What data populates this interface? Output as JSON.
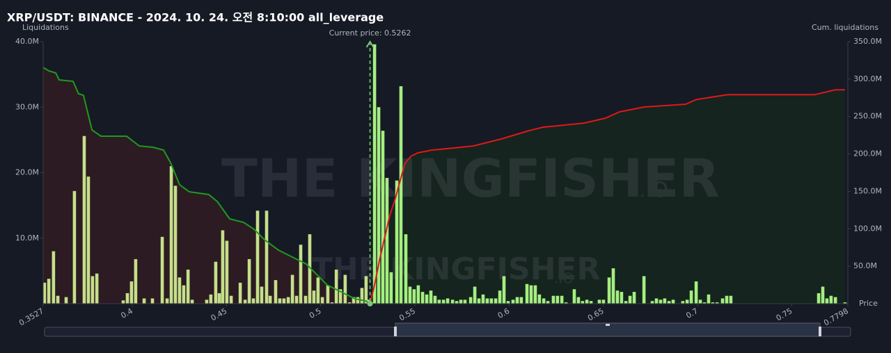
{
  "chart_data": {
    "type": "bar",
    "title": "XRP/USDT: BINANCE - 2024. 10. 24. 오전 8:10:00 all_leverage",
    "y_label": "Liquidations",
    "y2_label": "Cum. liquidations",
    "x_label": "Price",
    "watermark": "THE KINGFISHER",
    "watermark_suffix": ".IO",
    "annotations": [
      {
        "text": "Current price: 0.5262",
        "x": 0.5262
      }
    ],
    "xlim": [
      0.3527,
      0.7798
    ],
    "xticks": [
      0.3527,
      0.4,
      0.45,
      0.5,
      0.55,
      0.6,
      0.65,
      0.7,
      0.75,
      0.7798
    ],
    "ylim": [
      0,
      40000000
    ],
    "yticks": [
      {
        "value": 10000000,
        "label": "10.0M"
      },
      {
        "value": 20000000,
        "label": "20.0M"
      },
      {
        "value": 30000000,
        "label": "30.0M"
      },
      {
        "value": 40000000,
        "label": "40.0M"
      }
    ],
    "y2lim": [
      0,
      350000000
    ],
    "y2ticks": [
      {
        "value": 50000000,
        "label": "50.0M"
      },
      {
        "value": 100000000,
        "label": "100.0M"
      },
      {
        "value": 150000000,
        "label": "150.0M"
      },
      {
        "value": 200000000,
        "label": "200.0M"
      },
      {
        "value": 250000000,
        "label": "250.0M"
      },
      {
        "value": 300000000,
        "label": "300.0M"
      },
      {
        "value": 350000000,
        "label": "350.0M"
      }
    ],
    "bar_color_below": "#c5df8a",
    "bar_color_above": "#a5ef80",
    "x": [
      0.3534,
      0.3557,
      0.3582,
      0.3605,
      0.3649,
      0.3693,
      0.3745,
      0.3767,
      0.3789,
      0.3812,
      0.3952,
      0.3974,
      0.3996,
      0.4018,
      0.4063,
      0.4107,
      0.4159,
      0.4185,
      0.4207,
      0.4229,
      0.4251,
      0.4273,
      0.4296,
      0.4318,
      0.4395,
      0.4417,
      0.4443,
      0.4462,
      0.448,
      0.4502,
      0.4525,
      0.4573,
      0.4599,
      0.4621,
      0.4643,
      0.4665,
      0.4687,
      0.4713,
      0.4732,
      0.4761,
      0.4783,
      0.4805,
      0.4828,
      0.485,
      0.4872,
      0.4894,
      0.492,
      0.4942,
      0.4964,
      0.4986,
      0.5009,
      0.5038,
      0.506,
      0.5083,
      0.5105,
      0.513,
      0.5153,
      0.5175,
      0.5197,
      0.5219,
      0.5241,
      0.5258,
      0.5286,
      0.5308,
      0.533,
      0.5352,
      0.5374,
      0.5404,
      0.5426,
      0.5452,
      0.5474,
      0.5496,
      0.5518,
      0.5541,
      0.5563,
      0.5585,
      0.5607,
      0.5629,
      0.5652,
      0.5674,
      0.57,
      0.5722,
      0.5744,
      0.5766,
      0.5796,
      0.5818,
      0.584,
      0.5862,
      0.5884,
      0.5906,
      0.5929,
      0.5951,
      0.5973,
      0.5995,
      0.6021,
      0.6043,
      0.6065,
      0.6095,
      0.6117,
      0.6139,
      0.6161,
      0.6184,
      0.6206,
      0.6235,
      0.6257,
      0.628,
      0.6302,
      0.6346,
      0.6368,
      0.639,
      0.6413,
      0.6435,
      0.6479,
      0.6501,
      0.6531,
      0.6553,
      0.6575,
      0.6597,
      0.662,
      0.6642,
      0.6664,
      0.6716,
      0.676,
      0.6782,
      0.6804,
      0.6826,
      0.6849,
      0.6871,
      0.6922,
      0.6945,
      0.6967,
      0.6993,
      0.7015,
      0.7037,
      0.7059,
      0.7081,
      0.7104,
      0.7133,
      0.7155,
      0.7177,
      0.7643,
      0.7665,
      0.7687,
      0.7709,
      0.7732,
      0.7783
    ],
    "values": [
      3200000.0,
      3800000.0,
      8000000.0,
      1200000.0,
      1000000.0,
      17200000.0,
      25600000.0,
      19400000.0,
      4200000.0,
      4600000.0,
      500000.0,
      1600000.0,
      3400000.0,
      6800000.0,
      800000.0,
      800000.0,
      10200000.0,
      800000.0,
      21000000.0,
      18000000.0,
      4000000.0,
      2800000.0,
      5200000.0,
      600000.0,
      600000.0,
      1400000.0,
      6400000.0,
      1600000.0,
      11200000.0,
      9600000.0,
      1200000.0,
      3200000.0,
      600000.0,
      6800000.0,
      800000.0,
      14200000.0,
      2600000.0,
      14200000.0,
      1200000.0,
      3600000.0,
      800000.0,
      800000.0,
      1000000.0,
      4400000.0,
      1200000.0,
      9000000.0,
      1200000.0,
      10600000.0,
      2000000.0,
      4000000.0,
      1000000.0,
      2800000.0,
      200000.0,
      5200000.0,
      2200000.0,
      4400000.0,
      200000.0,
      1000000.0,
      1000000.0,
      2400000.0,
      4200000.0,
      600000.0,
      39600000.0,
      30000000.0,
      26400000.0,
      19200000.0,
      4800000.0,
      18800000.0,
      33200000.0,
      10600000.0,
      2600000.0,
      2200000.0,
      2800000.0,
      1800000.0,
      1400000.0,
      2000000.0,
      1200000.0,
      600000.0,
      600000.0,
      800000.0,
      600000.0,
      400000.0,
      600000.0,
      600000.0,
      1000000.0,
      2600000.0,
      800000.0,
      1400000.0,
      800000.0,
      800000.0,
      800000.0,
      2000000.0,
      4200000.0,
      400000.0,
      600000.0,
      1000000.0,
      1000000.0,
      3000000.0,
      2800000.0,
      2800000.0,
      1400000.0,
      800000.0,
      400000.0,
      1200000.0,
      1200000.0,
      1200000.0,
      200000.0,
      2200000.0,
      1000000.0,
      400000.0,
      600000.0,
      400000.0,
      600000.0,
      600000.0,
      4000000.0,
      5400000.0,
      2000000.0,
      1800000.0,
      400000.0,
      1200000.0,
      1800000.0,
      4200000.0,
      400000.0,
      800000.0,
      600000.0,
      800000.0,
      400000.0,
      600000.0,
      400000.0,
      600000.0,
      2000000.0,
      3400000.0,
      600000.0,
      200000.0,
      1400000.0,
      200000.0,
      200000.0,
      800000.0,
      1200000.0,
      1200000.0,
      1600000.0,
      2600000.0,
      800000.0,
      1200000.0,
      1000000.0,
      200000.0
    ],
    "series": [
      {
        "color": "#1f9a1f",
        "fill": "#2c1b22",
        "axis": "y2",
        "x": [
          0.3527,
          0.3557,
          0.3594,
          0.3612,
          0.3686,
          0.3715,
          0.3741,
          0.3786,
          0.3834,
          0.397,
          0.4037,
          0.4111,
          0.4166,
          0.4203,
          0.4251,
          0.4303,
          0.4406,
          0.4451,
          0.4517,
          0.4591,
          0.4647,
          0.4702,
          0.4776,
          0.485,
          0.4924,
          0.4979,
          0.5034,
          0.5108,
          0.5182,
          0.5238,
          0.5262
        ],
        "values": [
          315600000.0,
          311000000.0,
          308200000.0,
          298900000.0,
          297100000.0,
          280400000.0,
          278500000.0,
          232100000.0,
          223700000.0,
          223700000.0,
          210700000.0,
          208900000.0,
          205200000.0,
          188500000.0,
          158800000.0,
          149500000.0,
          145800000.0,
          136500000.0,
          113300000.0,
          108600000.0,
          99300000.0,
          85400000.0,
          71500000.0,
          62200000.0,
          52900000.0,
          39000000.0,
          25100000.0,
          15800000.0,
          6500000.0,
          3700000.0,
          0
        ]
      },
      {
        "color": "#e01818",
        "fill": "#15241e",
        "axis": "y2",
        "x": [
          0.5262,
          0.5286,
          0.5312,
          0.5337,
          0.5367,
          0.5397,
          0.5422,
          0.5448,
          0.5478,
          0.5515,
          0.5589,
          0.57,
          0.5811,
          0.5958,
          0.6106,
          0.618,
          0.6254,
          0.6401,
          0.6512,
          0.6586,
          0.6716,
          0.6937,
          0.6993,
          0.7159,
          0.7621,
          0.7732,
          0.7783
        ],
        "values": [
          0,
          25100000.0,
          57600000.0,
          85400000.0,
          117900000.0,
          141100000.0,
          164300000.0,
          187500000.0,
          196800000.0,
          201500000.0,
          205200000.0,
          207900000.0,
          210700000.0,
          220000000.0,
          231200000.0,
          235800000.0,
          237600000.0,
          241400000.0,
          247900000.0,
          256200000.0,
          262700000.0,
          266400000.0,
          272700000.0,
          279200000.0,
          279200000.0,
          285700000.0,
          285700000.0
        ]
      }
    ]
  }
}
